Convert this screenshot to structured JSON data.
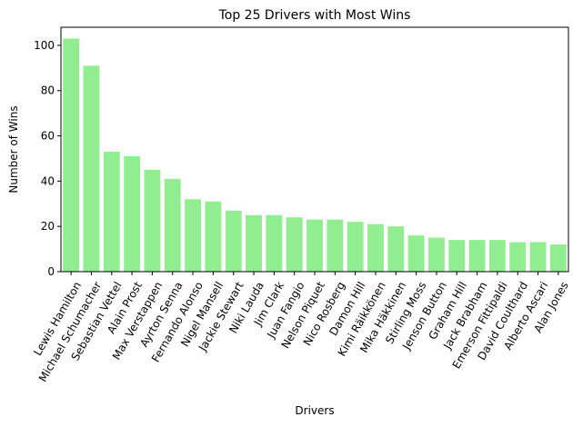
{
  "chart_data": {
    "type": "bar",
    "title": "Top 25 Drivers with Most Wins",
    "xlabel": "Drivers",
    "ylabel": "Number of Wins",
    "ylim": [
      0,
      108
    ],
    "yticks": [
      0,
      20,
      40,
      60,
      80,
      100
    ],
    "grid": false,
    "legend": "none",
    "bar_color": "#90ee90",
    "categories": [
      "Lewis Hamilton",
      "Michael Schumacher",
      "Sebastian Vettel",
      "Alain Prost",
      "Max Verstappen",
      "Ayrton Senna",
      "Fernando Alonso",
      "Nigel Mansell",
      "Jackie Stewart",
      "Niki Lauda",
      "Jim Clark",
      "Juan Fangio",
      "Nelson Piquet",
      "Nico Rosberg",
      "Damon Hill",
      "Kimi Räikkönen",
      "Mika Häkkinen",
      "Stirling Moss",
      "Jenson Button",
      "Graham Hill",
      "Jack Brabham",
      "Emerson Fittipaldi",
      "David Coulthard",
      "Alberto Ascari",
      "Alan Jones"
    ],
    "values": [
      103,
      91,
      53,
      51,
      45,
      41,
      32,
      31,
      27,
      25,
      25,
      24,
      23,
      23,
      22,
      21,
      20,
      16,
      15,
      14,
      14,
      14,
      13,
      13,
      12
    ]
  }
}
